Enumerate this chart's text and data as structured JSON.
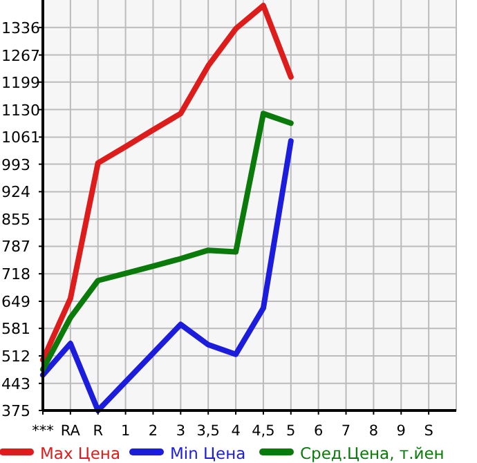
{
  "chart_data": {
    "type": "line",
    "categories": [
      "***",
      "RA",
      "R",
      "1",
      "2",
      "3",
      "3,5",
      "4",
      "4,5",
      "5",
      "6",
      "7",
      "8",
      "9",
      "S"
    ],
    "series": [
      {
        "name": "Max Цена",
        "color": "#dd1c1c",
        "values": [
          502,
          656,
          996,
          1037,
          1079,
          1120,
          1240,
          1333,
          1391,
          1212,
          null,
          null,
          null,
          null,
          null
        ]
      },
      {
        "name": "Min Цена",
        "color": "#1c1cdd",
        "values": [
          464,
          543,
          375,
          447,
          519,
          591,
          540,
          516,
          632,
          1051,
          null,
          null,
          null,
          null,
          null
        ]
      },
      {
        "name": "Сред.Цена, т.йен",
        "color": "#0a7a0a",
        "values": [
          478,
          608,
          701,
          719,
          737,
          756,
          777,
          773,
          1120,
          1096,
          null,
          null,
          null,
          null,
          null
        ]
      }
    ],
    "ylim": [
      375,
      1405
    ],
    "yticks": [
      375,
      443,
      512,
      581,
      649,
      718,
      787,
      855,
      924,
      993,
      1061,
      1130,
      1199,
      1267,
      1336
    ],
    "grid": true,
    "legend": "bottom",
    "marker": "none",
    "line_style": "solid"
  }
}
